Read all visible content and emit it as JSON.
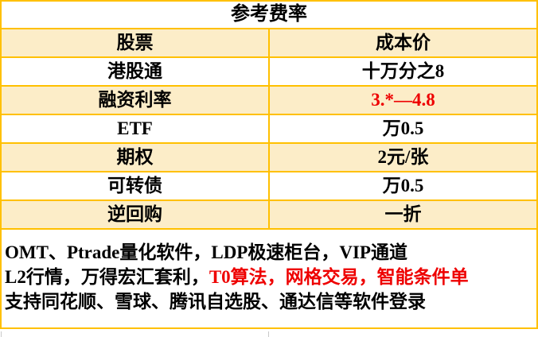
{
  "header": {
    "title": "参考费率"
  },
  "table": {
    "rows": [
      {
        "label": "股票",
        "value": "成本价"
      },
      {
        "label": "港股通",
        "value": "十万分之8"
      },
      {
        "label": "融资利率",
        "value": "3.*—4.8"
      },
      {
        "label": "ETF",
        "value": "万0.5"
      },
      {
        "label": "期权",
        "value": "2元/张"
      },
      {
        "label": "可转债",
        "value": "万0.5"
      },
      {
        "label": "逆回购",
        "value": "一折"
      }
    ]
  },
  "notes": {
    "line1_black": "OMT、Ptrade量化软件，LDP极速柜台，VIP通道",
    "line2_black": "L2行情，万得宏汇套利，",
    "line2_red": "T0算法，网格交易，智能条件单",
    "line3_black": "支持同花顺、雪球、腾讯自选股、通达信等软件登录"
  },
  "colors": {
    "border": "#FFC000",
    "row_fill": "#FCEDC8",
    "red_text": "#EE0000"
  }
}
